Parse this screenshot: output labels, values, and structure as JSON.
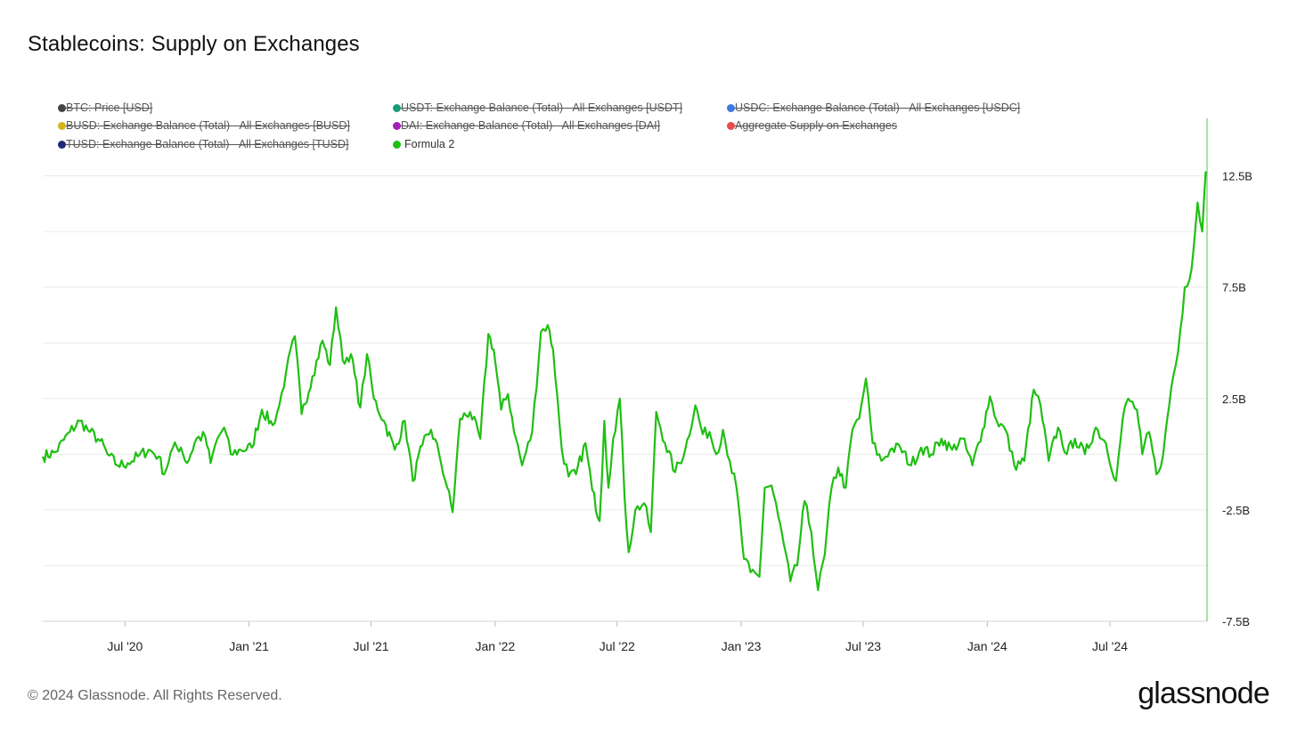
{
  "footer": {
    "copyright": "© 2024 Glassnode. All Rights Reserved.",
    "brand": "glassnode"
  },
  "colors": {
    "line": "#1fbf12",
    "grid": "#ececec",
    "cursor": "#1fbf12"
  },
  "legend": [
    {
      "label": "BTC: Price [USD]",
      "color": "#444444",
      "active": false
    },
    {
      "label": "USDT: Exchange Balance (Total) - All Exchanges [USDT]",
      "color": "#1a9c7a",
      "active": false
    },
    {
      "label": "USDC: Exchange Balance (Total) - All Exchanges [USDC]",
      "color": "#3a7bdc",
      "active": false
    },
    {
      "label": "BUSD: Exchange Balance (Total) - All Exchanges [BUSD]",
      "color": "#d4b51e",
      "active": false
    },
    {
      "label": "DAI: Exchange Balance (Total) - All Exchanges [DAI]",
      "color": "#a61fb8",
      "active": false
    },
    {
      "label": "Aggregate Supply on Exchanges",
      "color": "#ea4b4b",
      "active": false
    },
    {
      "label": "TUSD: Exchange Balance (Total) - All Exchanges [TUSD]",
      "color": "#1e2a7a",
      "active": false
    },
    {
      "label": "Formula 2",
      "color": "#1fbf12",
      "active": true
    }
  ],
  "chart_data": {
    "type": "line",
    "title": "Stablecoins: Supply on Exchanges",
    "xlabel": "",
    "ylabel": "",
    "y_unit": "USD (billions)",
    "ylim": [
      -7.5,
      15
    ],
    "yticks": [
      {
        "value": 12.5,
        "label": "12.5B"
      },
      {
        "value": 7.5,
        "label": "7.5B"
      },
      {
        "value": 2.5,
        "label": "2.5B"
      },
      {
        "value": -2.5,
        "label": "-2.5B"
      },
      {
        "value": -7.5,
        "label": "-7.5B"
      }
    ],
    "xlim": [
      "2020-03-01",
      "2024-11-22"
    ],
    "xticks": [
      {
        "date": "2020-07-01",
        "label": "Jul '20"
      },
      {
        "date": "2021-01-01",
        "label": "Jan '21"
      },
      {
        "date": "2021-07-01",
        "label": "Jul '21"
      },
      {
        "date": "2022-01-01",
        "label": "Jan '22"
      },
      {
        "date": "2022-07-01",
        "label": "Jul '22"
      },
      {
        "date": "2023-01-01",
        "label": "Jan '23"
      },
      {
        "date": "2023-07-01",
        "label": "Jul '23"
      },
      {
        "date": "2024-01-01",
        "label": "Jan '24"
      },
      {
        "date": "2024-07-01",
        "label": "Jul '24"
      }
    ],
    "grid": true,
    "legend_position": "top-left",
    "series": [
      {
        "name": "Formula 2",
        "color": "#1fbf12",
        "points": [
          [
            "2020-03-01",
            -0.1
          ],
          [
            "2020-03-20",
            0.1
          ],
          [
            "2020-04-10",
            1.0
          ],
          [
            "2020-04-25",
            1.5
          ],
          [
            "2020-05-10",
            1.0
          ],
          [
            "2020-05-25",
            0.6
          ],
          [
            "2020-06-05",
            0.0
          ],
          [
            "2020-06-20",
            -0.5
          ],
          [
            "2020-07-05",
            -0.4
          ],
          [
            "2020-07-20",
            -0.1
          ],
          [
            "2020-08-05",
            0.2
          ],
          [
            "2020-08-20",
            -0.1
          ],
          [
            "2020-08-28",
            -0.9
          ],
          [
            "2020-09-10",
            0.3
          ],
          [
            "2020-09-22",
            0.3
          ],
          [
            "2020-10-01",
            -0.4
          ],
          [
            "2020-10-15",
            0.7
          ],
          [
            "2020-10-28",
            0.8
          ],
          [
            "2020-11-05",
            -0.4
          ],
          [
            "2020-11-15",
            0.7
          ],
          [
            "2020-11-25",
            1.2
          ],
          [
            "2020-12-05",
            0.0
          ],
          [
            "2020-12-20",
            0.2
          ],
          [
            "2021-01-05",
            0.3
          ],
          [
            "2021-01-20",
            2.0
          ],
          [
            "2021-02-05",
            1.3
          ],
          [
            "2021-02-15",
            2.2
          ],
          [
            "2021-02-25",
            3.7
          ],
          [
            "2021-03-10",
            5.3
          ],
          [
            "2021-03-20",
            1.8
          ],
          [
            "2021-04-05",
            3.5
          ],
          [
            "2021-04-20",
            5.1
          ],
          [
            "2021-05-01",
            4.0
          ],
          [
            "2021-05-10",
            6.6
          ],
          [
            "2021-05-20",
            4.2
          ],
          [
            "2021-06-01",
            4.5
          ],
          [
            "2021-06-15",
            2.1
          ],
          [
            "2021-06-25",
            4.5
          ],
          [
            "2021-07-05",
            2.5
          ],
          [
            "2021-07-20",
            1.5
          ],
          [
            "2021-08-05",
            0.2
          ],
          [
            "2021-08-20",
            1.5
          ],
          [
            "2021-09-01",
            -1.2
          ],
          [
            "2021-09-15",
            0.4
          ],
          [
            "2021-09-28",
            1.1
          ],
          [
            "2021-10-10",
            0.0
          ],
          [
            "2021-10-22",
            -1.5
          ],
          [
            "2021-10-30",
            -2.6
          ],
          [
            "2021-11-10",
            1.6
          ],
          [
            "2021-11-25",
            1.9
          ],
          [
            "2021-12-10",
            0.7
          ],
          [
            "2021-12-22",
            5.4
          ],
          [
            "2021-12-30",
            4.7
          ],
          [
            "2022-01-10",
            2.0
          ],
          [
            "2022-01-20",
            2.7
          ],
          [
            "2022-02-01",
            0.7
          ],
          [
            "2022-02-10",
            -0.5
          ],
          [
            "2022-02-25",
            1.0
          ],
          [
            "2022-03-10",
            5.5
          ],
          [
            "2022-03-20",
            5.8
          ],
          [
            "2022-03-28",
            4.7
          ],
          [
            "2022-04-10",
            0.2
          ],
          [
            "2022-04-20",
            -1.0
          ],
          [
            "2022-05-01",
            -0.9
          ],
          [
            "2022-05-15",
            0.5
          ],
          [
            "2022-05-25",
            -1.6
          ],
          [
            "2022-06-05",
            -3.0
          ],
          [
            "2022-06-12",
            1.5
          ],
          [
            "2022-06-18",
            -1.5
          ],
          [
            "2022-06-25",
            0.7
          ],
          [
            "2022-07-05",
            2.5
          ],
          [
            "2022-07-12",
            -1.9
          ],
          [
            "2022-07-18",
            -4.4
          ],
          [
            "2022-07-28",
            -2.5
          ],
          [
            "2022-08-10",
            -2.2
          ],
          [
            "2022-08-20",
            -3.5
          ],
          [
            "2022-08-28",
            1.9
          ],
          [
            "2022-09-10",
            0.5
          ],
          [
            "2022-09-25",
            -0.8
          ],
          [
            "2022-10-10",
            0.2
          ],
          [
            "2022-10-25",
            2.2
          ],
          [
            "2022-11-05",
            0.9
          ],
          [
            "2022-11-15",
            1.0
          ],
          [
            "2022-11-25",
            0.0
          ],
          [
            "2022-12-05",
            1.1
          ],
          [
            "2022-12-15",
            -0.3
          ],
          [
            "2022-12-25",
            -1.5
          ],
          [
            "2023-01-05",
            -4.7
          ],
          [
            "2023-01-15",
            -5.3
          ],
          [
            "2023-01-28",
            -5.5
          ],
          [
            "2023-02-05",
            -1.5
          ],
          [
            "2023-02-15",
            -1.4
          ],
          [
            "2023-02-25",
            -2.8
          ],
          [
            "2023-03-05",
            -4.0
          ],
          [
            "2023-03-15",
            -5.7
          ],
          [
            "2023-03-25",
            -5.0
          ],
          [
            "2023-04-05",
            -2.1
          ],
          [
            "2023-04-15",
            -3.5
          ],
          [
            "2023-04-25",
            -6.1
          ],
          [
            "2023-05-05",
            -4.5
          ],
          [
            "2023-05-15",
            -1.5
          ],
          [
            "2023-05-25",
            -0.6
          ],
          [
            "2023-06-05",
            -1.5
          ],
          [
            "2023-06-15",
            1.1
          ],
          [
            "2023-06-25",
            1.6
          ],
          [
            "2023-07-05",
            3.4
          ],
          [
            "2023-07-15",
            0.5
          ],
          [
            "2023-07-28",
            -0.3
          ],
          [
            "2023-08-10",
            0.2
          ],
          [
            "2023-08-25",
            0.3
          ],
          [
            "2023-09-10",
            -0.5
          ],
          [
            "2023-09-25",
            0.3
          ],
          [
            "2023-10-10",
            0.0
          ],
          [
            "2023-10-25",
            0.7
          ],
          [
            "2023-11-10",
            0.2
          ],
          [
            "2023-11-25",
            0.7
          ],
          [
            "2023-12-10",
            -0.5
          ],
          [
            "2023-12-25",
            1.1
          ],
          [
            "2024-01-05",
            2.6
          ],
          [
            "2024-01-15",
            1.5
          ],
          [
            "2024-01-28",
            1.1
          ],
          [
            "2024-02-10",
            -0.5
          ],
          [
            "2024-02-25",
            -0.3
          ],
          [
            "2024-03-10",
            2.9
          ],
          [
            "2024-03-20",
            2.2
          ],
          [
            "2024-04-01",
            -0.3
          ],
          [
            "2024-04-15",
            1.2
          ],
          [
            "2024-04-28",
            0.0
          ],
          [
            "2024-05-10",
            0.7
          ],
          [
            "2024-05-25",
            0.0
          ],
          [
            "2024-06-10",
            1.2
          ],
          [
            "2024-06-25",
            0.5
          ],
          [
            "2024-07-10",
            -1.2
          ],
          [
            "2024-07-20",
            1.6
          ],
          [
            "2024-07-28",
            2.5
          ],
          [
            "2024-08-10",
            2.0
          ],
          [
            "2024-08-18",
            0.0
          ],
          [
            "2024-08-28",
            1.0
          ],
          [
            "2024-09-08",
            -0.9
          ],
          [
            "2024-09-18",
            0.0
          ],
          [
            "2024-09-30",
            3.0
          ],
          [
            "2024-10-10",
            4.6
          ],
          [
            "2024-10-20",
            7.5
          ],
          [
            "2024-10-30",
            8.3
          ],
          [
            "2024-11-08",
            11.3
          ],
          [
            "2024-11-15",
            10.0
          ],
          [
            "2024-11-20",
            12.7
          ]
        ]
      }
    ]
  }
}
